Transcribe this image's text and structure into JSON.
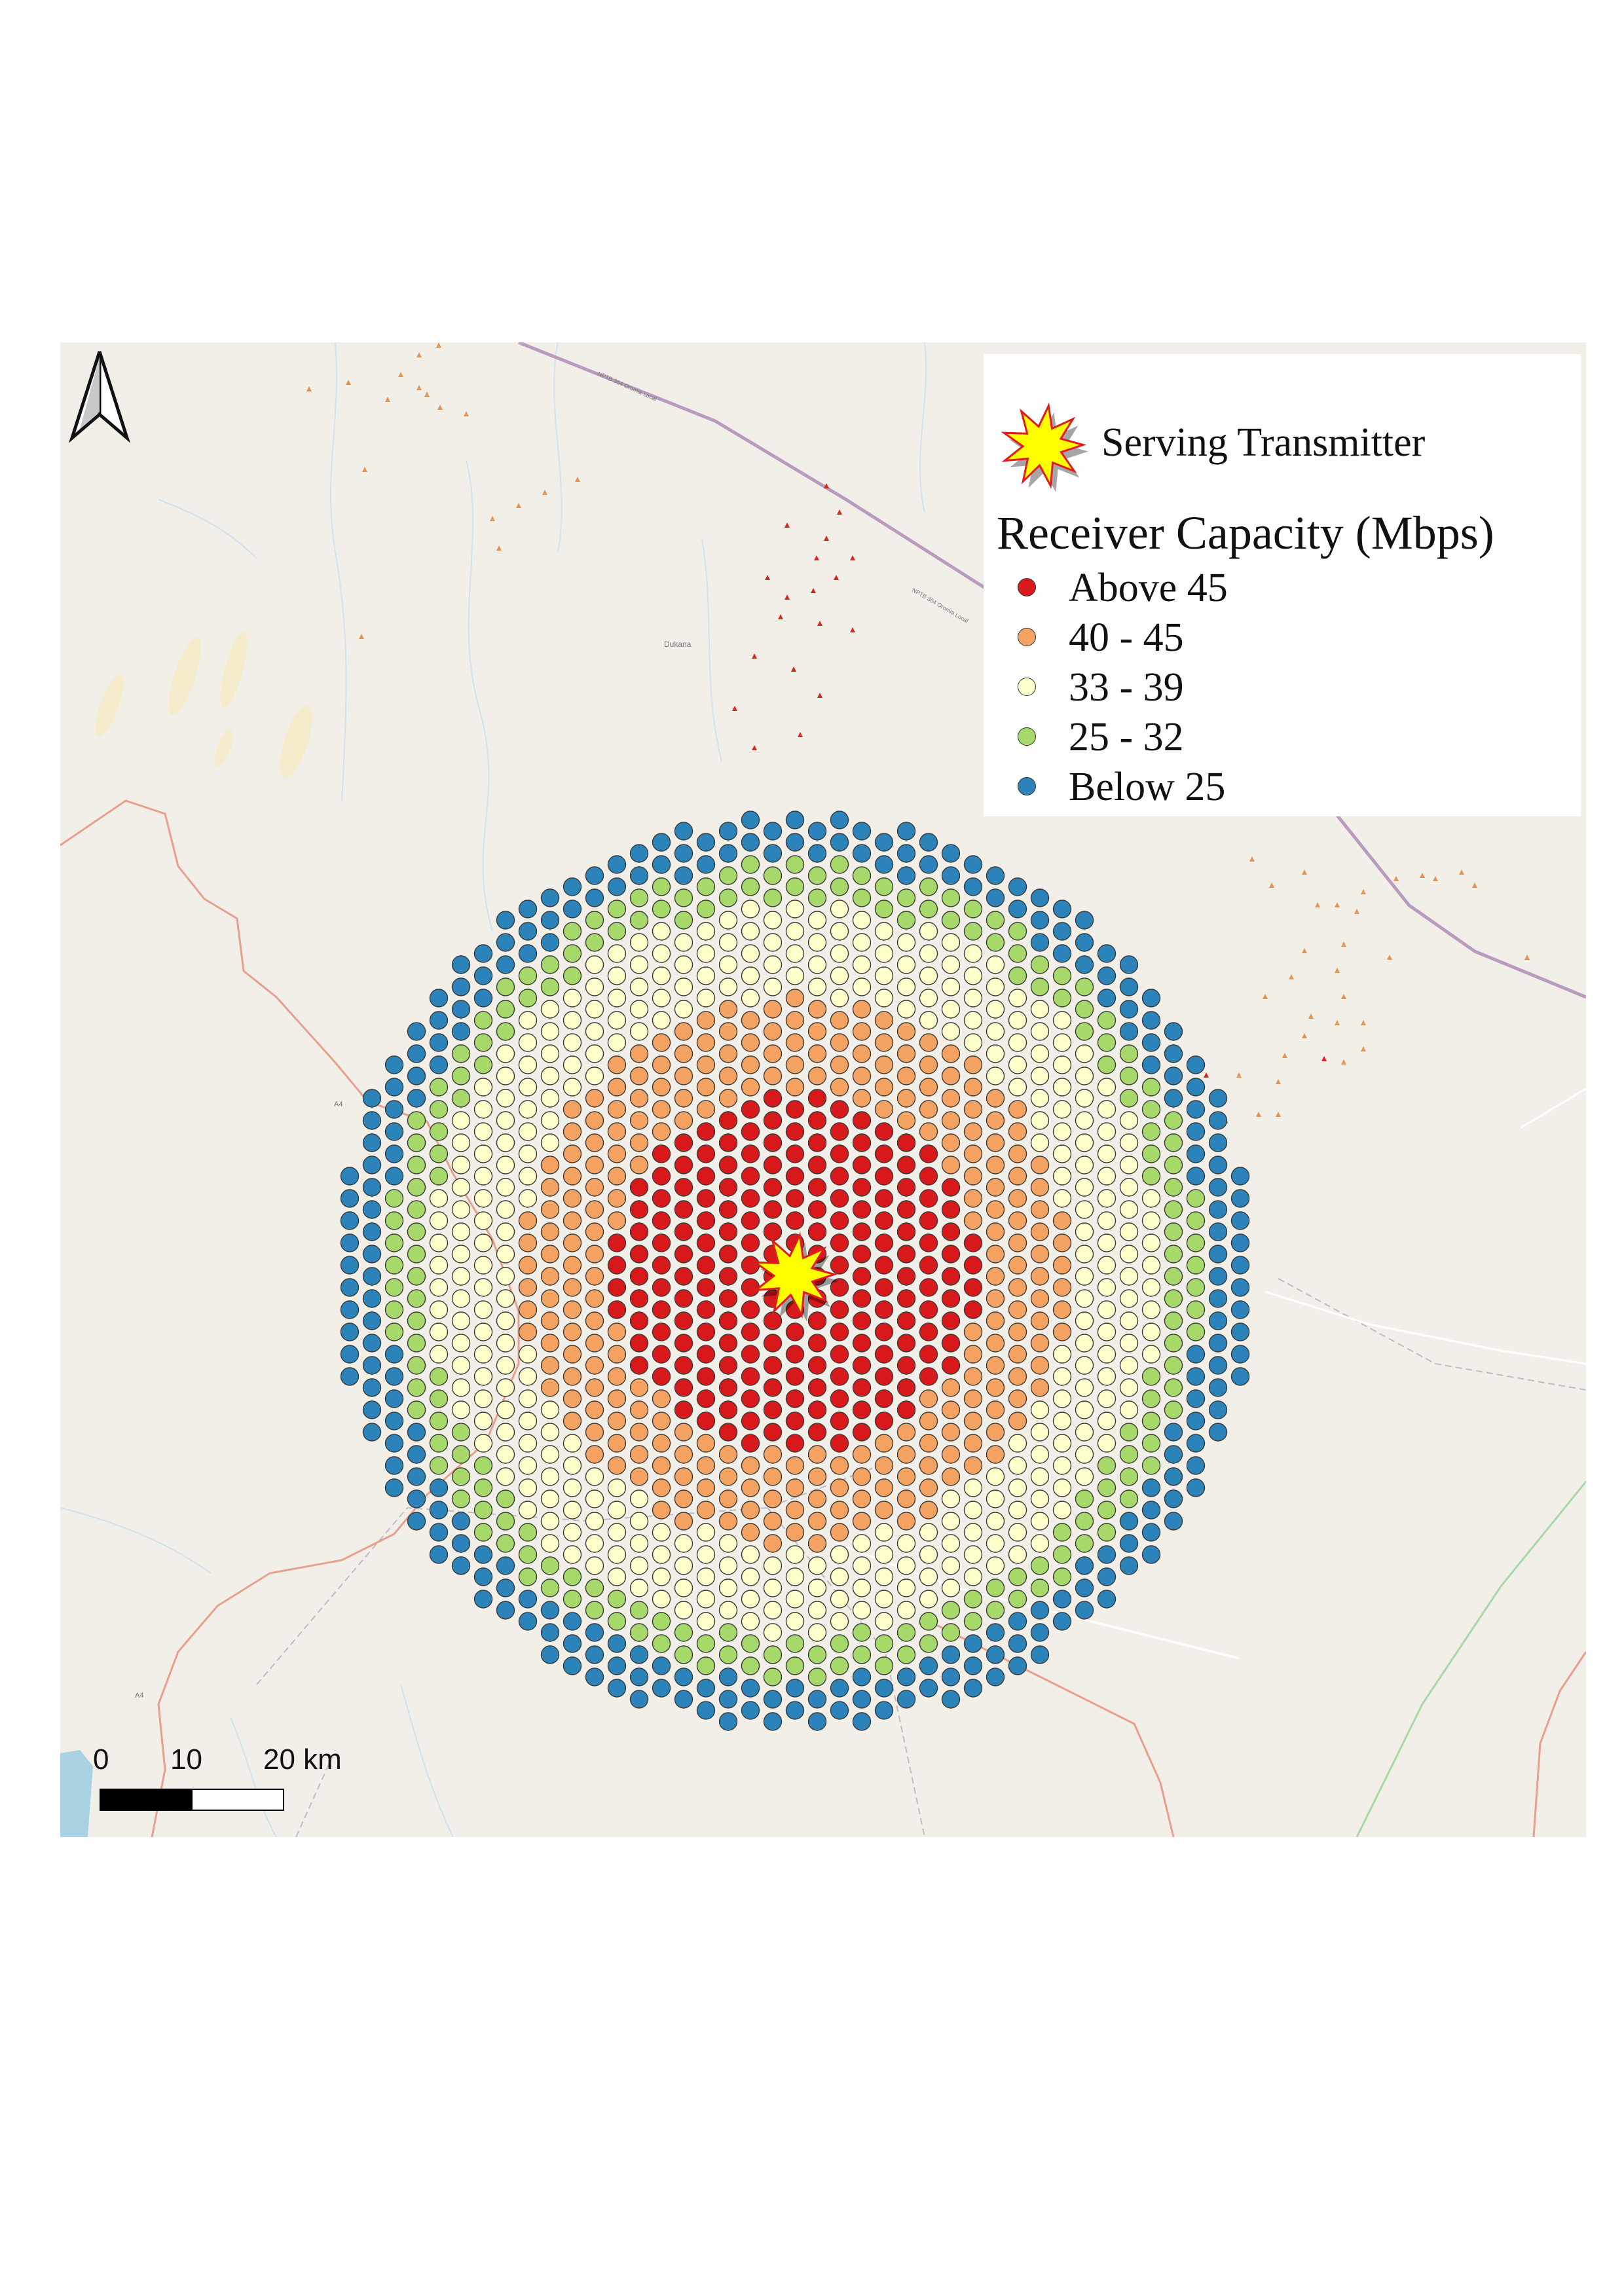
{
  "map": {
    "place_label": "Dukana",
    "road_label_a4_1": "A4",
    "road_label_a4_2": "A4",
    "road_label_trunk_1": "NPTB 364 Oromia Local",
    "road_label_trunk_2": "NPTB 364 Oromia Local"
  },
  "legend": {
    "transmitter_label": "Serving Transmitter",
    "title": "Receiver Capacity (Mbps)",
    "classes": [
      {
        "label": "Above 45",
        "color": "#d7191c"
      },
      {
        "label": "40 - 45",
        "color": "#f4a261"
      },
      {
        "label": "33 - 39",
        "color": "#ffffcc"
      },
      {
        "label": "25 - 32",
        "color": "#a6d96a"
      },
      {
        "label": "Below 25",
        "color": "#2b83ba"
      }
    ]
  },
  "scale_bar": {
    "labels": [
      "0",
      "10",
      "20 km"
    ]
  },
  "colors": {
    "transmitter_fill": "#ffff00",
    "transmitter_stroke": "#e31a1c",
    "background": "#f2efe9",
    "road_primary": "#e8a08e",
    "road_trunk": "#b89bbd",
    "water": "#a9d3e3"
  }
}
